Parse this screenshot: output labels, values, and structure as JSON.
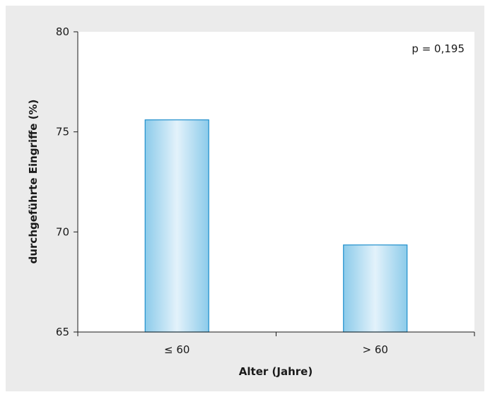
{
  "chart_data": {
    "type": "bar",
    "categories": [
      "≤ 60",
      "> 60"
    ],
    "values": [
      75.6,
      69.35
    ],
    "xlabel": "Alter (Jahre)",
    "ylabel": "durchgeführte Eingriffe (%)",
    "ylim": [
      65,
      80
    ],
    "yticks": [
      65,
      70,
      75,
      80
    ],
    "annotation": "p = 0,195",
    "grid": false,
    "colors": {
      "bar_edge": "#1f8fcc",
      "bar_fill_outer": "#8ccbea",
      "bar_fill_inner": "#e3f2fb",
      "plot_background": "#ffffff",
      "panel_background": "#ebebeb"
    }
  }
}
